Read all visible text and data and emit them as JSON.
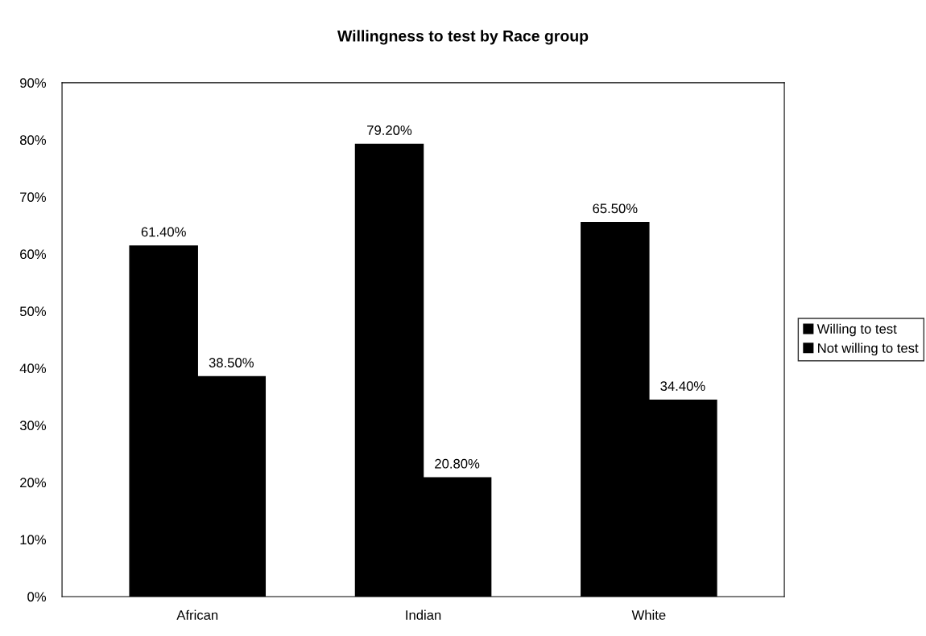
{
  "chart_data": {
    "type": "bar",
    "title": "Willingness to test by Race group",
    "categories": [
      "African",
      "Indian",
      "White"
    ],
    "series": [
      {
        "name": "Willing to test",
        "color": "#000000",
        "values": [
          61.4,
          79.2,
          65.5
        ],
        "value_labels": [
          "61.40%",
          "79.20%",
          "65.50%"
        ]
      },
      {
        "name": "Not willing to test",
        "color": "#000000",
        "values": [
          38.5,
          20.8,
          34.4
        ],
        "value_labels": [
          "38.50%",
          "20.80%",
          "34.40%"
        ]
      }
    ],
    "ylim": [
      0,
      90
    ],
    "yticks": [
      {
        "value": 0,
        "label": "0%"
      },
      {
        "value": 10,
        "label": "10%"
      },
      {
        "value": 20,
        "label": "20%"
      },
      {
        "value": 30,
        "label": "30%"
      },
      {
        "value": 40,
        "label": "40%"
      },
      {
        "value": 50,
        "label": "50%"
      },
      {
        "value": 60,
        "label": "60%"
      },
      {
        "value": 70,
        "label": "70%"
      },
      {
        "value": 80,
        "label": "80%"
      },
      {
        "value": 90,
        "label": "90%"
      }
    ],
    "grid": false,
    "legend": "right"
  }
}
